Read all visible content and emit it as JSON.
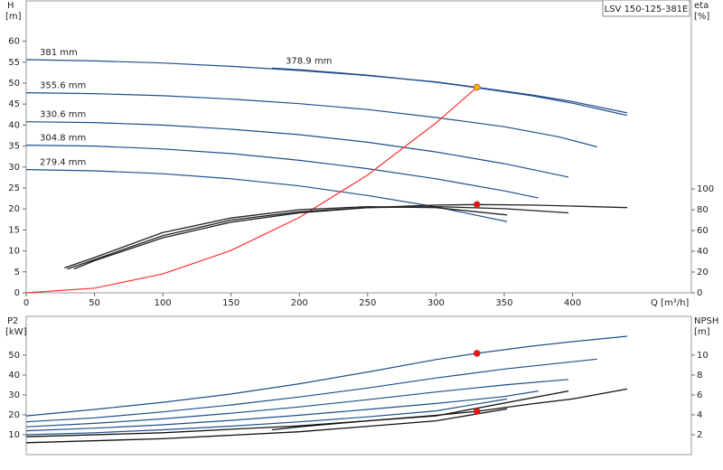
{
  "chart_data": [
    {
      "type": "line",
      "title": "LSV 150-125-381E",
      "ylabel": "H",
      "yunit": "[m]",
      "y2label": "eta",
      "y2unit": "[%]",
      "xlabel": "Q [m³/h]",
      "xlim": [
        0,
        487
      ],
      "xticks": [
        0,
        50,
        100,
        150,
        200,
        250,
        300,
        350,
        400
      ],
      "ylim": [
        0,
        69.6
      ],
      "yticks": [
        0,
        5,
        10,
        15,
        20,
        25,
        30,
        35,
        40,
        45,
        50,
        55,
        60
      ],
      "y2lim": [
        0,
        281
      ],
      "y2ticks": [
        0,
        20,
        40,
        60,
        80,
        100
      ],
      "series": [
        {
          "name": "381 mm",
          "color": "#1f4e8c",
          "x": [
            0,
            50,
            100,
            150,
            200,
            250,
            300,
            330,
            370,
            400,
            440
          ],
          "values": [
            55.6,
            55.3,
            54.8,
            54.0,
            53.0,
            51.8,
            50.3,
            49.0,
            47.2,
            45.6,
            42.9
          ]
        },
        {
          "name": "378.9 mm",
          "color": "#1f4e8c",
          "x": [
            180,
            200,
            250,
            300,
            330,
            370,
            400,
            440
          ],
          "values": [
            53.6,
            53.2,
            51.9,
            50.2,
            48.9,
            47.0,
            45.2,
            42.3
          ]
        },
        {
          "name": "355.6 mm",
          "color": "#1f4e8c",
          "x": [
            0,
            50,
            100,
            150,
            200,
            250,
            300,
            350,
            390,
            418
          ],
          "values": [
            47.7,
            47.5,
            47.0,
            46.2,
            45.1,
            43.7,
            41.8,
            39.6,
            37.2,
            34.8
          ]
        },
        {
          "name": "330.6 mm",
          "color": "#1f4e8c",
          "x": [
            0,
            50,
            100,
            150,
            200,
            250,
            300,
            350,
            397
          ],
          "values": [
            40.8,
            40.6,
            40.0,
            39.0,
            37.7,
            35.9,
            33.6,
            30.8,
            27.6
          ]
        },
        {
          "name": "304.8 mm",
          "color": "#1f4e8c",
          "x": [
            0,
            50,
            100,
            150,
            200,
            250,
            300,
            350,
            375
          ],
          "values": [
            35.2,
            35.0,
            34.3,
            33.2,
            31.6,
            29.6,
            27.2,
            24.3,
            22.6
          ]
        },
        {
          "name": "279.4 mm",
          "color": "#1f4e8c",
          "x": [
            0,
            50,
            100,
            150,
            200,
            250,
            300,
            352
          ],
          "values": [
            29.4,
            29.1,
            28.4,
            27.2,
            25.5,
            23.2,
            20.5,
            17.0
          ]
        },
        {
          "color": "#ff3030",
          "x": [
            0,
            50,
            100,
            150,
            200,
            250,
            300,
            330
          ],
          "values": [
            0,
            1.12,
            4.5,
            10.1,
            18.0,
            28.1,
            40.5,
            49.0
          ]
        },
        {
          "color": "#222222",
          "axis": "y2",
          "x": [
            35,
            50,
            100,
            150,
            200,
            250,
            300,
            330,
            370,
            400,
            440
          ],
          "values": [
            23,
            31,
            53,
            68,
            77,
            82,
            84.5,
            85,
            84.5,
            83.5,
            82
          ]
        },
        {
          "color": "#222222",
          "axis": "y2",
          "x": [
            30,
            50,
            100,
            150,
            200,
            250,
            300,
            350,
            397
          ],
          "values": [
            23,
            32,
            55,
            70,
            78,
            82,
            83,
            81,
            77
          ]
        },
        {
          "color": "#222222",
          "axis": "y2",
          "x": [
            28,
            50,
            100,
            150,
            200,
            250,
            300,
            352
          ],
          "values": [
            24,
            34,
            58,
            72,
            80,
            83,
            82,
            75
          ]
        },
        {
          "color": "#f5b800",
          "marker": true,
          "x": [
            330
          ],
          "values": [
            49.0
          ]
        },
        {
          "color": "#ee1111",
          "marker": true,
          "axis": "y2",
          "x": [
            330
          ],
          "values": [
            85
          ]
        }
      ]
    },
    {
      "type": "line",
      "ylabel": "P2",
      "yunit": "[kW]",
      "y2label": "NPSH",
      "y2unit": "[m]",
      "xlim": [
        0,
        487
      ],
      "ylim": [
        0,
        69.5
      ],
      "yticks": [
        10,
        20,
        30,
        40,
        50
      ],
      "y2lim": [
        0,
        13.9
      ],
      "y2ticks": [
        2,
        4,
        6,
        8,
        10
      ],
      "series": [
        {
          "color": "#1f4e8c",
          "x": [
            0,
            50,
            100,
            150,
            200,
            250,
            300,
            330,
            370,
            400,
            440
          ],
          "values": [
            19.5,
            22.7,
            26.3,
            30.5,
            35.6,
            41.5,
            47.8,
            50.9,
            54.5,
            56.8,
            59.5
          ]
        },
        {
          "color": "#1f4e8c",
          "x": [
            0,
            50,
            100,
            150,
            200,
            250,
            300,
            350,
            418
          ],
          "values": [
            16.5,
            18.5,
            21.5,
            25,
            29,
            33.5,
            38.5,
            43,
            48
          ]
        },
        {
          "color": "#1f4e8c",
          "x": [
            0,
            50,
            100,
            150,
            200,
            250,
            300,
            350,
            397
          ],
          "values": [
            14,
            15.7,
            18,
            20.8,
            24,
            27.6,
            31.5,
            35,
            37.8
          ]
        },
        {
          "color": "#1f4e8c",
          "x": [
            0,
            50,
            100,
            150,
            200,
            250,
            300,
            350,
            375
          ],
          "values": [
            12,
            13.3,
            15,
            17.2,
            19.8,
            22.7,
            25.7,
            29.2,
            32
          ]
        },
        {
          "color": "#1f4e8c",
          "x": [
            0,
            50,
            100,
            150,
            200,
            250,
            300,
            352
          ],
          "values": [
            10,
            11,
            12.5,
            14.3,
            16.5,
            19,
            22,
            28
          ]
        },
        {
          "color": "#111111",
          "axis": "y2",
          "x": [
            180,
            200,
            250,
            300,
            330,
            370,
            400,
            440
          ],
          "values": [
            2.5,
            2.8,
            3.4,
            3.95,
            4.35,
            5.1,
            5.6,
            6.6
          ]
        },
        {
          "color": "#111111",
          "axis": "y2",
          "x": [
            0,
            100,
            200,
            300,
            397
          ],
          "values": [
            1.8,
            2.2,
            2.9,
            3.9,
            6.4
          ]
        },
        {
          "color": "#111111",
          "axis": "y2",
          "x": [
            0,
            100,
            200,
            300,
            352
          ],
          "values": [
            1.2,
            1.6,
            2.3,
            3.4,
            4.6
          ]
        },
        {
          "color": "#ee1111",
          "marker": true,
          "x": [
            330
          ],
          "values": [
            50.9
          ]
        },
        {
          "color": "#ee1111",
          "marker": true,
          "axis": "y2",
          "x": [
            330
          ],
          "values": [
            4.35
          ]
        }
      ]
    }
  ]
}
